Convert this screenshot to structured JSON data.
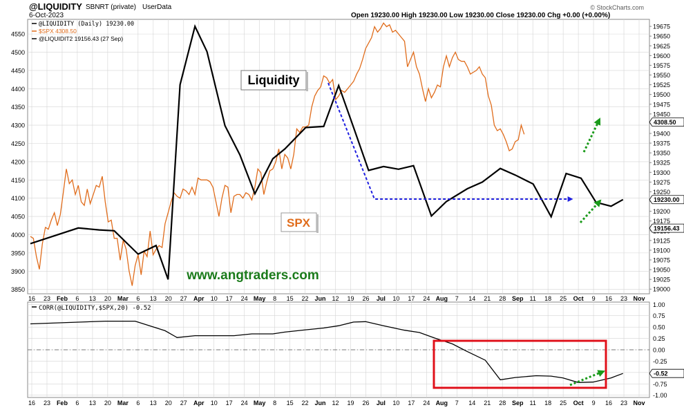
{
  "header": {
    "symbol": "@LIQUIDITY",
    "source": "SBNRT (private)",
    "user": "UserData",
    "date": "6-Oct-2023",
    "ohlc": "Open 19230.00  High 19230.00  Low 19230.00  Close 19230.00  Chg +0.00 (+0.00%)",
    "watermark": "© StockCharts.com"
  },
  "legend": [
    {
      "text": "@LIQUIDITY (Daily) 19230.00",
      "color": "#000000"
    },
    {
      "text": "$SPX 4308.50",
      "color": "#e06c1b"
    },
    {
      "text": "@LIQUIDIT2 19156.43 (27 Sep)",
      "color": "#000000"
    }
  ],
  "annotations": {
    "liquidity_label": "Liquidity",
    "spx_label": "SPX",
    "website": "www.angtraders.com"
  },
  "colors": {
    "spx": "#e06c1b",
    "liquidity": "#000000",
    "blue_arrow": "#1e1ee0",
    "green_arrow": "#1a9a1a",
    "highlight_box": "#e0101a",
    "grid": "#d4d4d4",
    "site_text": "#1a7a1a"
  },
  "x_axis_labels": [
    "16",
    "23",
    "Feb",
    "6",
    "13",
    "20",
    "Mar",
    "6",
    "13",
    "20",
    "27",
    "Apr",
    "10",
    "17",
    "24",
    "May",
    "8",
    "15",
    "22",
    "Jun",
    "12",
    "19",
    "26",
    "Jul",
    "10",
    "17",
    "24",
    "Aug",
    "7",
    "14",
    "21",
    "28",
    "Sep",
    "11",
    "18",
    "25",
    "Oct",
    "9",
    "16",
    "23",
    "Nov"
  ],
  "chart_data": [
    {
      "type": "line",
      "title": "",
      "y_left": {
        "ticks": [
          3850,
          3900,
          3950,
          4000,
          4050,
          4100,
          4150,
          4200,
          4250,
          4300,
          4350,
          4400,
          4450,
          4500,
          4550
        ],
        "range": [
          3838,
          4590
        ]
      },
      "y_right": {
        "ticks": [
          19000,
          19025,
          19050,
          19075,
          19100,
          19125,
          19150,
          19175,
          19200,
          19225,
          19250,
          19275,
          19300,
          19325,
          19350,
          19375,
          19400,
          19425,
          19450,
          19475,
          19500,
          19525,
          19550,
          19575,
          19600,
          19625,
          19650,
          19675
        ],
        "range": [
          18988,
          19693
        ]
      },
      "value_badges": {
        "spx": "4308.50",
        "liquidity": "19230.00",
        "liquidit2": "19156.43"
      },
      "series": [
        {
          "name": "$SPX",
          "axis": "left",
          "points": [
            [
              0,
              3995
            ],
            [
              1,
              3990
            ],
            [
              2,
              3940
            ],
            [
              3,
              3905
            ],
            [
              4,
              3975
            ],
            [
              5,
              4020
            ],
            [
              6,
              4015
            ],
            [
              7,
              4040
            ],
            [
              8,
              4060
            ],
            [
              9,
              4025
            ],
            [
              10,
              4055
            ],
            [
              11,
              4115
            ],
            [
              12,
              4180
            ],
            [
              13,
              4140
            ],
            [
              14,
              4150
            ],
            [
              15,
              4110
            ],
            [
              16,
              4135
            ],
            [
              17,
              4090
            ],
            [
              18,
              4080
            ],
            [
              19,
              4125
            ],
            [
              20,
              4085
            ],
            [
              21,
              4110
            ],
            [
              22,
              4135
            ],
            [
              23,
              4130
            ],
            [
              24,
              4160
            ],
            [
              25,
              4090
            ],
            [
              26,
              4035
            ],
            [
              27,
              4040
            ],
            [
              28,
              3990
            ],
            [
              29,
              3990
            ],
            [
              30,
              3930
            ],
            [
              31,
              3985
            ],
            [
              32,
              3960
            ],
            [
              33,
              3900
            ],
            [
              34,
              3860
            ],
            [
              35,
              3915
            ],
            [
              36,
              3945
            ],
            [
              37,
              3890
            ],
            [
              38,
              3955
            ],
            [
              39,
              3940
            ],
            [
              40,
              4010
            ],
            [
              41,
              3945
            ],
            [
              42,
              3960
            ],
            [
              43,
              3970
            ],
            [
              44,
              3965
            ],
            [
              45,
              4030
            ],
            [
              46,
              4060
            ],
            [
              47,
              4090
            ],
            [
              48,
              4115
            ],
            [
              49,
              4105
            ],
            [
              50,
              4100
            ],
            [
              51,
              4125
            ],
            [
              52,
              4120
            ],
            [
              53,
              4110
            ],
            [
              54,
              4130
            ],
            [
              55,
              4110
            ],
            [
              56,
              4155
            ],
            [
              57,
              4150
            ],
            [
              58,
              4150
            ],
            [
              59,
              4150
            ],
            [
              60,
              4145
            ],
            [
              61,
              4130
            ],
            [
              62,
              4090
            ],
            [
              63,
              4050
            ],
            [
              64,
              4100
            ],
            [
              65,
              4135
            ],
            [
              66,
              4130
            ],
            [
              67,
              4060
            ],
            [
              68,
              4105
            ],
            [
              69,
              4110
            ],
            [
              70,
              4110
            ],
            [
              71,
              4100
            ],
            [
              72,
              4115
            ],
            [
              73,
              4110
            ],
            [
              74,
              4095
            ],
            [
              75,
              4130
            ],
            [
              76,
              4180
            ],
            [
              77,
              4170
            ],
            [
              78,
              4110
            ],
            [
              79,
              4145
            ],
            [
              80,
              4175
            ],
            [
              81,
              4180
            ],
            [
              82,
              4200
            ],
            [
              83,
              4235
            ],
            [
              84,
              4180
            ],
            [
              85,
              4220
            ],
            [
              86,
              4210
            ],
            [
              87,
              4180
            ],
            [
              88,
              4220
            ],
            [
              89,
              4290
            ],
            [
              90,
              4280
            ],
            [
              91,
              4295
            ],
            [
              92,
              4295
            ],
            [
              93,
              4300
            ],
            [
              94,
              4350
            ],
            [
              95,
              4380
            ],
            [
              96,
              4395
            ],
            [
              97,
              4405
            ],
            [
              98,
              4435
            ],
            [
              99,
              4430
            ],
            [
              100,
              4415
            ],
            [
              101,
              4425
            ],
            [
              102,
              4370
            ],
            [
              103,
              4380
            ],
            [
              104,
              4395
            ],
            [
              105,
              4390
            ],
            [
              106,
              4400
            ],
            [
              107,
              4410
            ],
            [
              108,
              4420
            ],
            [
              109,
              4440
            ],
            [
              110,
              4455
            ],
            [
              111,
              4480
            ],
            [
              112,
              4510
            ],
            [
              113,
              4525
            ],
            [
              114,
              4540
            ],
            [
              115,
              4570
            ],
            [
              116,
              4555
            ],
            [
              117,
              4565
            ],
            [
              118,
              4580
            ],
            [
              119,
              4570
            ],
            [
              120,
              4575
            ],
            [
              121,
              4555
            ],
            [
              122,
              4560
            ],
            [
              123,
              4550
            ],
            [
              124,
              4540
            ],
            [
              125,
              4530
            ],
            [
              126,
              4460
            ],
            [
              127,
              4480
            ],
            [
              128,
              4500
            ],
            [
              129,
              4460
            ],
            [
              130,
              4440
            ],
            [
              131,
              4400
            ],
            [
              132,
              4365
            ],
            [
              133,
              4400
            ],
            [
              134,
              4375
            ],
            [
              135,
              4390
            ],
            [
              136,
              4410
            ],
            [
              137,
              4405
            ],
            [
              138,
              4460
            ],
            [
              139,
              4490
            ],
            [
              140,
              4460
            ],
            [
              141,
              4485
            ],
            [
              142,
              4500
            ],
            [
              143,
              4480
            ],
            [
              144,
              4475
            ],
            [
              145,
              4475
            ],
            [
              146,
              4460
            ],
            [
              147,
              4440
            ],
            [
              148,
              4445
            ],
            [
              149,
              4450
            ],
            [
              150,
              4460
            ],
            [
              151,
              4440
            ],
            [
              152,
              4430
            ],
            [
              153,
              4380
            ],
            [
              154,
              4355
            ],
            [
              155,
              4300
            ],
            [
              156,
              4285
            ],
            [
              157,
              4290
            ],
            [
              158,
              4275
            ],
            [
              159,
              4255
            ],
            [
              160,
              4230
            ],
            [
              161,
              4235
            ],
            [
              162,
              4255
            ],
            [
              163,
              4260
            ],
            [
              164,
              4300
            ],
            [
              165,
              4275
            ]
          ]
        },
        {
          "name": "@LIQUIDITY",
          "axis": "right",
          "points": [
            [
              0,
              19117
            ],
            [
              16,
              19157
            ],
            [
              23,
              19152
            ],
            [
              28,
              19150
            ],
            [
              36,
              19090
            ],
            [
              42,
              19112
            ],
            [
              46,
              19025
            ],
            [
              50,
              19525
            ],
            [
              55,
              19675
            ],
            [
              59,
              19610
            ],
            [
              65,
              19420
            ],
            [
              70,
              19345
            ],
            [
              75,
              19245
            ],
            [
              81,
              19335
            ],
            [
              85,
              19360
            ],
            [
              92,
              19415
            ],
            [
              98,
              19418
            ],
            [
              103,
              19523
            ],
            [
              108,
              19415
            ],
            [
              113,
              19305
            ],
            [
              118,
              19315
            ],
            [
              123,
              19308
            ],
            [
              128,
              19317
            ],
            [
              134,
              19188
            ],
            [
              139,
              19225
            ],
            [
              146,
              19258
            ],
            [
              151,
              19275
            ],
            [
              157,
              19310
            ],
            [
              162,
              19293
            ],
            [
              168,
              19270
            ],
            [
              174,
              19186
            ],
            [
              179,
              19297
            ],
            [
              184,
              19285
            ],
            [
              189,
              19223
            ],
            [
              194,
              19213
            ],
            [
              198,
              19230
            ]
          ]
        }
      ],
      "x_range": [
        0,
        205
      ]
    },
    {
      "type": "line",
      "title": "CORR(@LIQUIDITY,$SPX,20) -0.52",
      "y_right": {
        "ticks": [
          1.0,
          0.75,
          0.5,
          0.25,
          0.0,
          -0.25,
          -0.5,
          -0.75,
          -1.0
        ],
        "range": [
          -1.05,
          1.05
        ]
      },
      "value_badges": {
        "corr": "-0.52"
      },
      "series": [
        {
          "name": "CORR(@LIQUIDITY,$SPX,20)",
          "points": [
            [
              0,
              0.57
            ],
            [
              12,
              0.6
            ],
            [
              25,
              0.63
            ],
            [
              35,
              0.63
            ],
            [
              45,
              0.42
            ],
            [
              49,
              0.27
            ],
            [
              55,
              0.31
            ],
            [
              61,
              0.31
            ],
            [
              68,
              0.31
            ],
            [
              74,
              0.35
            ],
            [
              81,
              0.35
            ],
            [
              85,
              0.39
            ],
            [
              92,
              0.44
            ],
            [
              98,
              0.48
            ],
            [
              103,
              0.53
            ],
            [
              108,
              0.61
            ],
            [
              112,
              0.62
            ],
            [
              118,
              0.53
            ],
            [
              125,
              0.43
            ],
            [
              130,
              0.38
            ],
            [
              135,
              0.26
            ],
            [
              141,
              0.13
            ],
            [
              146,
              -0.04
            ],
            [
              152,
              -0.23
            ],
            [
              157,
              -0.66
            ],
            [
              162,
              -0.61
            ],
            [
              169,
              -0.57
            ],
            [
              174,
              -0.58
            ],
            [
              178,
              -0.62
            ],
            [
              183,
              -0.72
            ],
            [
              188,
              -0.71
            ],
            [
              194,
              -0.62
            ],
            [
              198,
              -0.52
            ]
          ]
        }
      ],
      "x_range": [
        0,
        205
      ]
    }
  ]
}
